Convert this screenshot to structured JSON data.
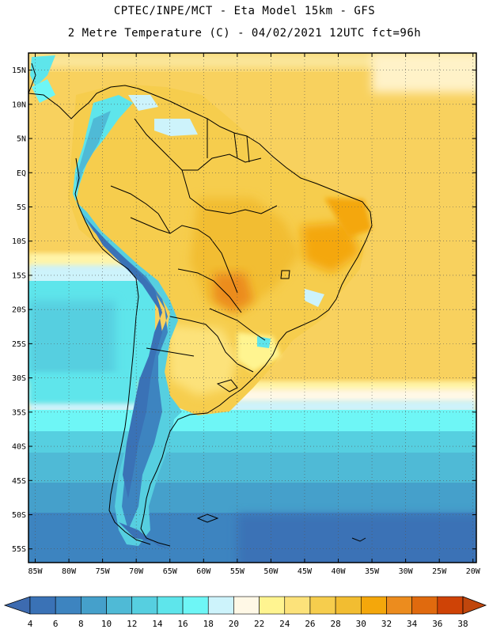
{
  "header": {
    "line1": "CPTEC/INPE/MCT -  Eta Model 15km - GFS",
    "line2": "2 Metre Temperature (C) - 04/02/2021 12UTC fct=96h"
  },
  "map": {
    "lon_range": [
      -86,
      -19.5
    ],
    "lat_range": [
      -57,
      17.5
    ],
    "lat_ticks": [
      {
        "lat": 15,
        "label": "15N"
      },
      {
        "lat": 10,
        "label": "10N"
      },
      {
        "lat": 5,
        "label": "5N"
      },
      {
        "lat": 0,
        "label": "EQ"
      },
      {
        "lat": -5,
        "label": "5S"
      },
      {
        "lat": -10,
        "label": "10S"
      },
      {
        "lat": -15,
        "label": "15S"
      },
      {
        "lat": -20,
        "label": "20S"
      },
      {
        "lat": -25,
        "label": "25S"
      },
      {
        "lat": -30,
        "label": "30S"
      },
      {
        "lat": -35,
        "label": "35S"
      },
      {
        "lat": -40,
        "label": "40S"
      },
      {
        "lat": -45,
        "label": "45S"
      },
      {
        "lat": -50,
        "label": "50S"
      },
      {
        "lat": -55,
        "label": "55S"
      }
    ],
    "lon_ticks": [
      {
        "lon": -85,
        "label": "85W"
      },
      {
        "lon": -80,
        "label": "80W"
      },
      {
        "lon": -75,
        "label": "75W"
      },
      {
        "lon": -70,
        "label": "70W"
      },
      {
        "lon": -65,
        "label": "65W"
      },
      {
        "lon": -60,
        "label": "60W"
      },
      {
        "lon": -55,
        "label": "55W"
      },
      {
        "lon": -50,
        "label": "50W"
      },
      {
        "lon": -45,
        "label": "45W"
      },
      {
        "lon": -40,
        "label": "40W"
      },
      {
        "lon": -35,
        "label": "35W"
      },
      {
        "lon": -30,
        "label": "30W"
      },
      {
        "lon": -25,
        "label": "25W"
      },
      {
        "lon": -20,
        "label": "20W"
      }
    ],
    "variable": "2 Metre Temperature",
    "units": "C"
  },
  "colorbar": {
    "labels": [
      "4",
      "6",
      "8",
      "10",
      "12",
      "14",
      "16",
      "18",
      "20",
      "22",
      "24",
      "26",
      "28",
      "30",
      "32",
      "34",
      "36",
      "38"
    ],
    "colors": [
      "#3a72b6",
      "#3d84c0",
      "#45a0cb",
      "#4fbad6",
      "#56cfe0",
      "#5ee5eb",
      "#6ef6f6",
      "#cdf3fb",
      "#fff8e6",
      "#fff490",
      "#fce27a",
      "#f6cd4d",
      "#f2bd31",
      "#f4a70b",
      "#ec8c1e",
      "#e06a0e",
      "#cf4306"
    ],
    "low_color": "#3d6bb0",
    "high_color": "#c0460c"
  },
  "chart_data": {
    "type": "heatmap",
    "title": "2 Metre Temperature (C) - 04/02/2021 12UTC fct=96h",
    "xlabel": "",
    "ylabel": "",
    "x_range": [
      -86,
      -19.5
    ],
    "y_range": [
      -57,
      17.5
    ],
    "value_levels": [
      4,
      6,
      8,
      10,
      12,
      14,
      16,
      18,
      20,
      22,
      24,
      26,
      28,
      30,
      32,
      34,
      36,
      38
    ]
  }
}
